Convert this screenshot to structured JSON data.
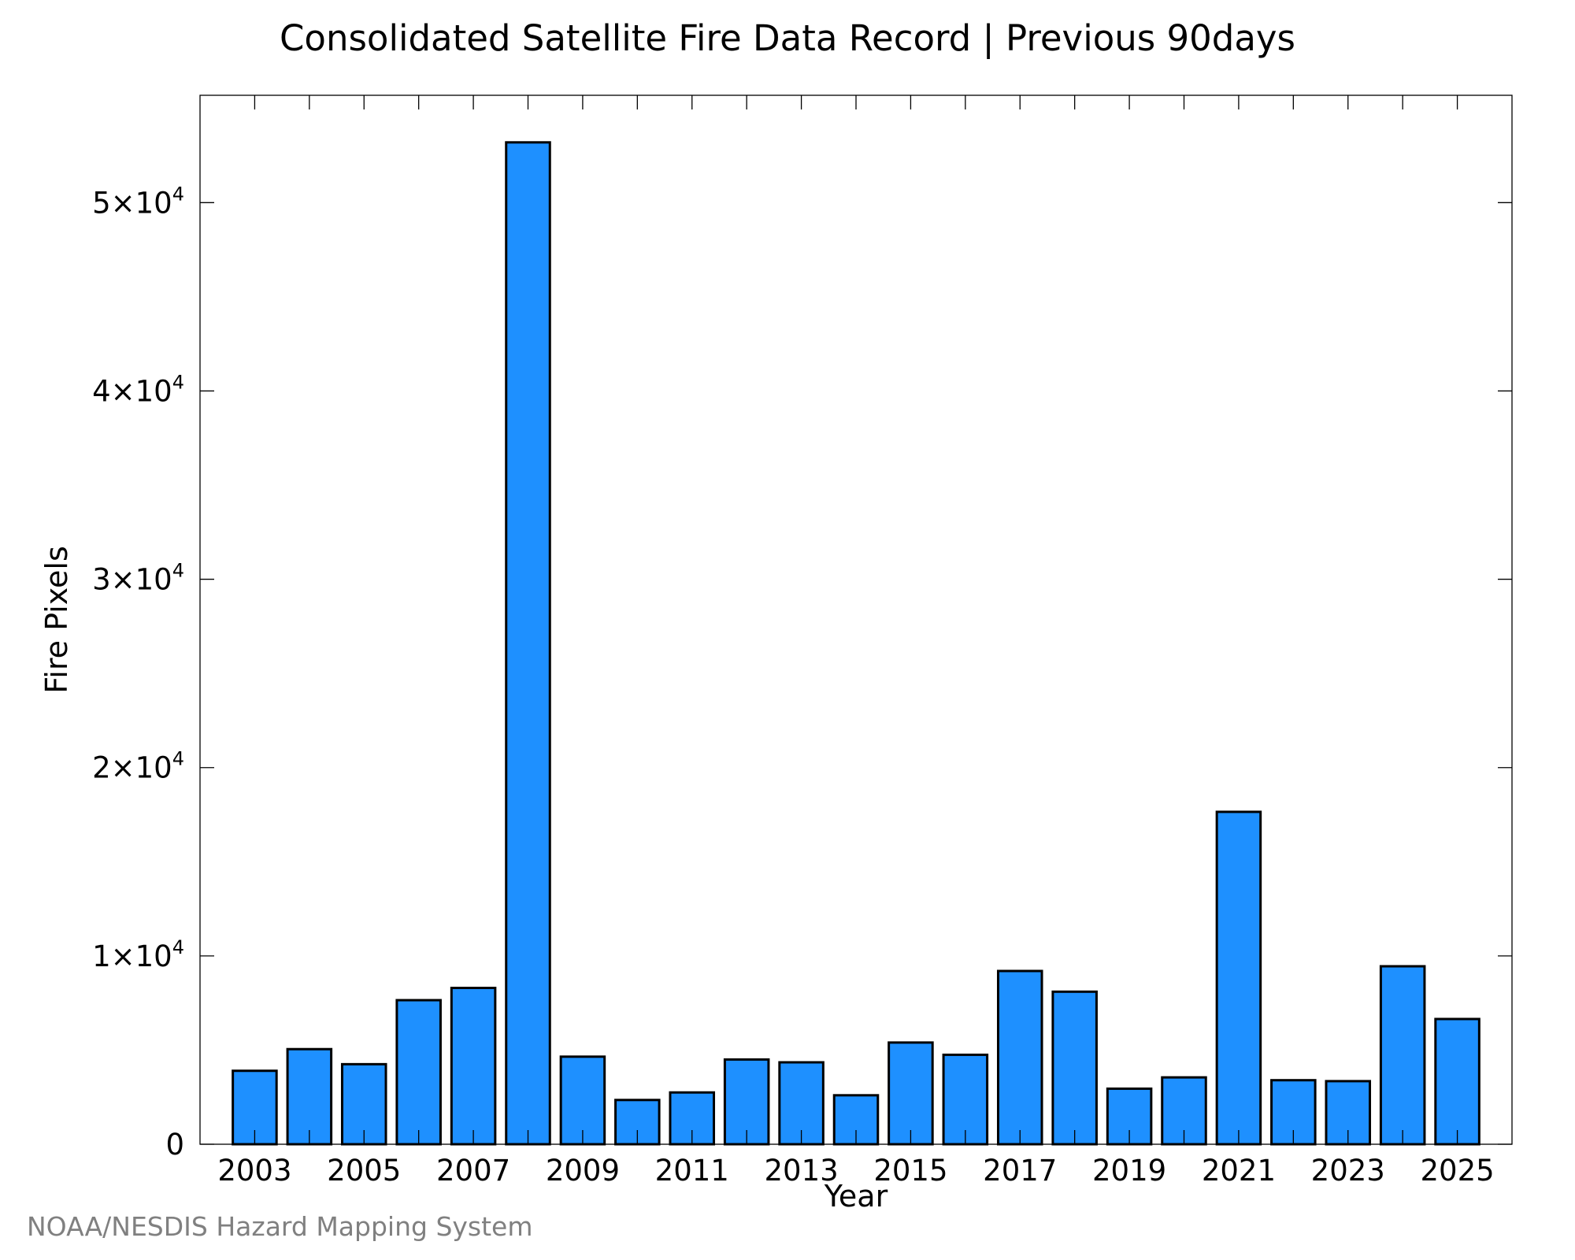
{
  "chart_data": {
    "type": "bar",
    "title": "Consolidated Satellite Fire Data Record | Previous 90days",
    "xlabel": "Year",
    "ylabel": "Fire Pixels",
    "categories": [
      "2003",
      "2004",
      "2005",
      "2006",
      "2007",
      "2008",
      "2009",
      "2010",
      "2011",
      "2012",
      "2013",
      "2014",
      "2015",
      "2016",
      "2017",
      "2018",
      "2019",
      "2020",
      "2021",
      "2022",
      "2023",
      "2024",
      "2025"
    ],
    "values": [
      3900,
      5050,
      4250,
      7650,
      8300,
      53200,
      4650,
      2350,
      2750,
      4500,
      4350,
      2600,
      5400,
      4750,
      9200,
      8100,
      2950,
      3550,
      17650,
      3400,
      3350,
      9450,
      6650
    ],
    "ylim": [
      0,
      55700
    ],
    "xlim": [
      2002,
      2026
    ],
    "x_tick_labels": [
      "2003",
      "2005",
      "2007",
      "2009",
      "2011",
      "2013",
      "2015",
      "2017",
      "2019",
      "2021",
      "2023",
      "2025"
    ],
    "y_ticks": [
      {
        "value": 0,
        "mantissa": "0",
        "exponent": ""
      },
      {
        "value": 10000,
        "mantissa": "1×10",
        "exponent": "4"
      },
      {
        "value": 20000,
        "mantissa": "2×10",
        "exponent": "4"
      },
      {
        "value": 30000,
        "mantissa": "3×10",
        "exponent": "4"
      },
      {
        "value": 40000,
        "mantissa": "4×10",
        "exponent": "4"
      },
      {
        "value": 50000,
        "mantissa": "5×10",
        "exponent": "4"
      }
    ],
    "grid": false,
    "legend": "none",
    "bar_color": "#1E90FF",
    "bar_edge_color": "#000000"
  },
  "footer": {
    "credit": "NOAA/NESDIS Hazard Mapping System"
  }
}
